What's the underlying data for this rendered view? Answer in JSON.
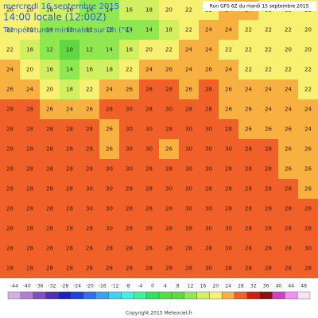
{
  "header": {
    "date": "mercredi 16 septembre 2015",
    "time": "14:00 locale (12:00Z)",
    "field": "Températures minimales sur 3h (°C)",
    "run": "Run GFS 6Z du mardi 15 septembre 2015"
  },
  "map": {
    "grid": [
      [
        20,
        20,
        18,
        16,
        14,
        14,
        16,
        18,
        20,
        22,
        22,
        24,
        24,
        22,
        22,
        22
      ],
      [
        22,
        20,
        14,
        12,
        12,
        12,
        14,
        14,
        18,
        22,
        24,
        24,
        22,
        22,
        22,
        20
      ],
      [
        22,
        18,
        12,
        10,
        12,
        14,
        16,
        20,
        22,
        24,
        24,
        22,
        22,
        22,
        20,
        20
      ],
      [
        24,
        20,
        16,
        14,
        16,
        18,
        22,
        24,
        26,
        24,
        26,
        24,
        22,
        22,
        22,
        22
      ],
      [
        26,
        24,
        20,
        18,
        22,
        24,
        26,
        28,
        28,
        26,
        28,
        26,
        24,
        24,
        24,
        22
      ],
      [
        28,
        28,
        26,
        24,
        26,
        28,
        30,
        28,
        30,
        28,
        28,
        26,
        26,
        24,
        24,
        24
      ],
      [
        28,
        28,
        28,
        28,
        28,
        26,
        30,
        30,
        28,
        30,
        30,
        28,
        26,
        26,
        26,
        24
      ],
      [
        28,
        28,
        28,
        28,
        28,
        26,
        30,
        30,
        26,
        30,
        30,
        30,
        28,
        28,
        26,
        26
      ],
      [
        28,
        28,
        28,
        28,
        28,
        30,
        30,
        28,
        28,
        30,
        30,
        28,
        28,
        28,
        26,
        26
      ],
      [
        28,
        28,
        28,
        28,
        30,
        30,
        28,
        28,
        30,
        30,
        28,
        28,
        28,
        28,
        28,
        26
      ],
      [
        28,
        28,
        28,
        28,
        30,
        30,
        28,
        28,
        28,
        30,
        30,
        28,
        28,
        28,
        28,
        28
      ],
      [
        28,
        28,
        28,
        28,
        28,
        30,
        28,
        28,
        28,
        28,
        30,
        30,
        28,
        28,
        28,
        28
      ],
      [
        28,
        28,
        28,
        28,
        28,
        28,
        28,
        28,
        28,
        28,
        28,
        30,
        28,
        28,
        28,
        30
      ],
      [
        28,
        28,
        28,
        28,
        28,
        28,
        28,
        28,
        28,
        28,
        30,
        28,
        28,
        28,
        28,
        28
      ]
    ]
  },
  "legend": {
    "items": [
      {
        "value": -44,
        "color": "#d0b0e0"
      },
      {
        "value": -40,
        "color": "#b080d0"
      },
      {
        "value": -36,
        "color": "#8050c0"
      },
      {
        "value": -32,
        "color": "#5030b0"
      },
      {
        "value": -28,
        "color": "#2020c0"
      },
      {
        "value": -24,
        "color": "#2040e0"
      },
      {
        "value": -20,
        "color": "#3070f0"
      },
      {
        "value": -16,
        "color": "#40a0f0"
      },
      {
        "value": -12,
        "color": "#40d0f0"
      },
      {
        "value": -8,
        "color": "#40f0e0"
      },
      {
        "value": -4,
        "color": "#40f0a0"
      },
      {
        "value": 0,
        "color": "#30e060"
      },
      {
        "value": 4,
        "color": "#50e040"
      },
      {
        "value": 8,
        "color": "#60d840"
      },
      {
        "value": 12,
        "color": "#90e850"
      },
      {
        "value": 16,
        "color": "#d0f060"
      },
      {
        "value": 20,
        "color": "#f8f070"
      },
      {
        "value": 24,
        "color": "#f8b040"
      },
      {
        "value": 28,
        "color": "#f06028"
      },
      {
        "value": 32,
        "color": "#d02010"
      },
      {
        "value": 36,
        "color": "#901010"
      },
      {
        "value": 40,
        "color": "#d040c0"
      },
      {
        "value": 44,
        "color": "#f090f0"
      },
      {
        "value": 48,
        "color": "#f8e0f8"
      }
    ]
  },
  "footer": {
    "copyright": "Copyright 2015 Meteociel.fr"
  }
}
